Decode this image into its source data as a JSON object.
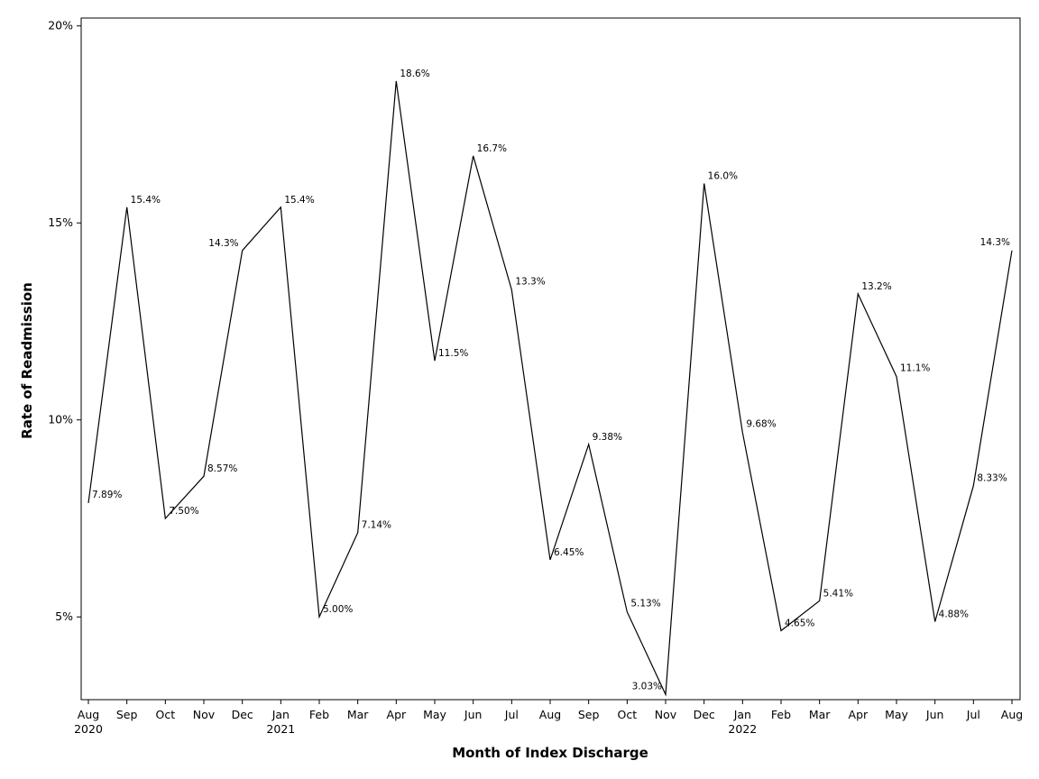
{
  "chart_data": {
    "type": "line",
    "title": "",
    "xlabel": "Month of Index Discharge",
    "ylabel": "Rate of Readmission",
    "ylim": [
      2.9,
      20.2
    ],
    "yticks": [
      {
        "value": 5,
        "label": "5%"
      },
      {
        "value": 10,
        "label": "10%"
      },
      {
        "value": 15,
        "label": "15%"
      },
      {
        "value": 20,
        "label": "20%"
      }
    ],
    "grid": false,
    "legend": "none",
    "categories": [
      "Aug",
      "Sep",
      "Oct",
      "Nov",
      "Dec",
      "Jan",
      "Feb",
      "Mar",
      "Apr",
      "May",
      "Jun",
      "Jul",
      "Aug",
      "Sep",
      "Oct",
      "Nov",
      "Dec",
      "Jan",
      "Feb",
      "Mar",
      "Apr",
      "May",
      "Jun",
      "Jul",
      "Aug"
    ],
    "year_labels": [
      {
        "index": 0,
        "label": "2020"
      },
      {
        "index": 5,
        "label": "2021"
      },
      {
        "index": 17,
        "label": "2022"
      }
    ],
    "values": [
      7.89,
      15.4,
      7.5,
      8.57,
      14.3,
      15.4,
      5.0,
      7.14,
      18.6,
      11.5,
      16.7,
      13.3,
      6.45,
      9.38,
      5.13,
      3.03,
      16.0,
      9.68,
      4.65,
      5.41,
      13.2,
      11.1,
      4.88,
      8.33,
      14.3
    ],
    "value_labels": [
      "7.89%",
      "15.4%",
      "7.50%",
      "8.57%",
      "14.3%",
      "15.4%",
      "5.00%",
      "7.14%",
      "18.6%",
      "11.5%",
      "16.7%",
      "13.3%",
      "6.45%",
      "9.38%",
      "5.13%",
      "3.03%",
      "16.0%",
      "9.68%",
      "4.65%",
      "5.41%",
      "13.2%",
      "11.1%",
      "4.88%",
      "8.33%",
      "14.3%"
    ],
    "line_color": "#000000"
  }
}
